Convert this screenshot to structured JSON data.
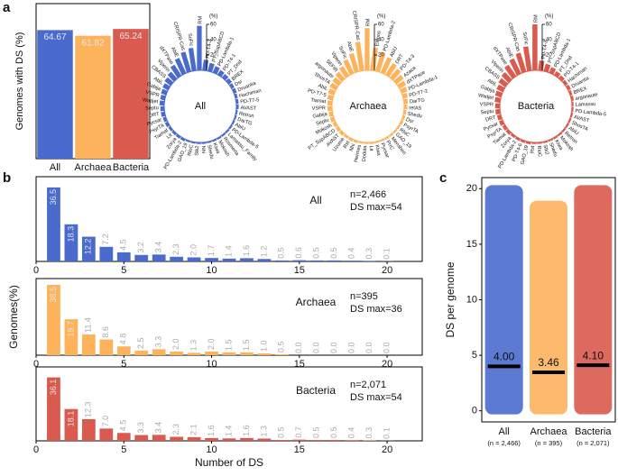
{
  "panel_labels": [
    "a",
    "b",
    "c"
  ],
  "chart_data": [
    {
      "type": "bar",
      "ylabel": "Genomes with DS (%)",
      "categories": [
        "All",
        "Archaea",
        "Bacteria"
      ],
      "values": [
        64.67,
        61.82,
        65.24
      ],
      "colors": [
        "#4a6bcd",
        "#fdb35c",
        "#d95a4e"
      ],
      "ylim": [
        0,
        78
      ]
    },
    {
      "type": "radial_bar",
      "title": "All",
      "color": "#4a6bcd",
      "rlim": [
        0,
        60
      ],
      "rticks": [
        20,
        40,
        60
      ],
      "r_unit": "(%)",
      "categories": [
        "RM",
        "SoFic",
        "CRISPR-Cas",
        "AbiE",
        "dXTPase",
        "Viperin",
        "CBASS",
        "AbiL",
        "Gabija",
        "VSPR",
        "Wadjet",
        "Septu",
        "DRT",
        "Pycsar",
        "PsyrTA",
        "Tiamat",
        "Lit",
        "Zorya",
        "PD-Lambda-2",
        "GAO_19",
        "RloC",
        "Stk2",
        "Nhi",
        "Shedu",
        "Kiwa",
        "Mokosh",
        "Rosmerta",
        "Lamassu_Family",
        "PD-Lambda-5",
        "AbiU",
        "DarTG",
        "Retron",
        "AVAST",
        "PD-T7-5",
        "Hachiman",
        "Druantia",
        "Dsr",
        "BREX",
        "PT_Dnd",
        "PD-T4-1",
        "PD-Lambda-1",
        "PT_SspABCD",
        "PD-T4-3"
      ],
      "values": [
        58,
        30,
        27,
        22,
        17,
        12,
        10,
        8,
        7,
        6,
        6,
        5,
        5,
        4,
        4,
        3,
        3,
        3,
        3,
        2,
        2,
        2,
        2,
        2,
        2,
        2,
        2,
        2,
        2,
        2,
        2,
        2,
        3,
        3,
        3,
        4,
        4,
        5,
        6,
        7,
        9,
        11,
        14
      ]
    },
    {
      "type": "radial_bar",
      "title": "Archaea",
      "color": "#fdb35c",
      "rlim": [
        0,
        60
      ],
      "rticks": [
        20,
        40,
        60
      ],
      "r_unit": "(%)",
      "categories": [
        "RM",
        "CRISPR-Cas",
        "AbiE",
        "SoFic",
        "Viperin",
        "SEFIR",
        "argonaute",
        "ShosTA",
        "AbiL",
        "PD-T7-5",
        "Tiamat",
        "VSPR",
        "Gabija",
        "Septu",
        "Mokosh",
        "PT_SspABCD",
        "AVAST",
        "Uzume",
        "Rst",
        "Nhi",
        "Hermes",
        "Dodola",
        "Lit",
        "Kiwa",
        "Pycsar",
        "PrrC",
        "Menshen",
        "GAO_19",
        "RloC",
        "PsyrTA",
        "Dsr",
        "Shedu",
        "retAS",
        "DarTG",
        "PD-T7-2",
        "PD-Lambda-1",
        "dXTPase",
        "Azaca",
        "PD-T4-3",
        "DRT",
        "AbiU",
        "PD-Lambda-2",
        "Elenos"
      ],
      "values": [
        55,
        38,
        25,
        20,
        15,
        12,
        10,
        9,
        8,
        7,
        6,
        6,
        5,
        5,
        4,
        4,
        4,
        3,
        3,
        3,
        2,
        2,
        2,
        2,
        2,
        2,
        2,
        2,
        2,
        3,
        3,
        3,
        4,
        5,
        6,
        8,
        10,
        12,
        15,
        18,
        22,
        26,
        30
      ]
    },
    {
      "type": "radial_bar",
      "title": "Bacteria",
      "color": "#d95a4e",
      "rlim": [
        0,
        60
      ],
      "rticks": [
        20,
        40,
        60
      ],
      "r_unit": "(%)",
      "categories": [
        "RM",
        "SoFic",
        "CRISPR-Cas",
        "AbiE",
        "dXTPase",
        "Viperin",
        "CBASS",
        "AbiL",
        "Gabija",
        "Wadjet",
        "VSPR",
        "Septu",
        "DRT",
        "Pycsar",
        "PsyrTA",
        "Tiamat",
        "Zorya",
        "PD-Lambda-2",
        "PD-T4-6",
        "GAO_19",
        "Rst",
        "RloC",
        "Stk2",
        "Shedu",
        "Kiwa",
        "Mokosh",
        "Retron",
        "AbiU",
        "ShosTA",
        "AVAST",
        "PD-Lambda-5",
        "Lamassu",
        "argonaute",
        "BREX",
        "Druantia",
        "Hachiman",
        "PD-T4-1",
        "PT_Dnd",
        "PD-Lambda-1",
        "PT_SspABCD",
        "PD-T4-3"
      ],
      "values": [
        60,
        32,
        26,
        22,
        18,
        13,
        11,
        9,
        8,
        7,
        6,
        6,
        5,
        5,
        4,
        4,
        3,
        3,
        3,
        3,
        2,
        2,
        2,
        2,
        2,
        2,
        2,
        2,
        2,
        2,
        2,
        2,
        3,
        3,
        4,
        4,
        5,
        6,
        8,
        10,
        13
      ]
    },
    {
      "type": "histogram_bar",
      "title": "All",
      "annotations": [
        "n=2,466",
        "DS max=54"
      ],
      "color": "#4a6bcd",
      "x": [
        1,
        2,
        3,
        4,
        5,
        6,
        7,
        8,
        9,
        10,
        11,
        12,
        13,
        14,
        15,
        16,
        17,
        18,
        19,
        20
      ],
      "values": [
        36.5,
        18.3,
        12.2,
        7.2,
        4.5,
        3.2,
        3.4,
        2.3,
        2.0,
        1.7,
        1.4,
        1.6,
        1.2,
        0.5,
        0.6,
        0.5,
        0.5,
        0.4,
        0.3,
        0.1
      ],
      "value_labels": [
        "36.5",
        "18.3",
        "12.2",
        "7.2",
        "4.5",
        "3.2",
        "3.4",
        "2.3",
        "2.0",
        "1.7",
        "1.4",
        "1.6",
        "1.2",
        "0.5",
        "0.6",
        "0.5",
        "0.5",
        "0.4",
        "0.3",
        "0.1"
      ],
      "xlim": [
        0,
        22
      ],
      "xticks": [
        0,
        5,
        10,
        15,
        20
      ],
      "ylim": [
        0,
        40
      ]
    },
    {
      "type": "histogram_bar",
      "title": "Archaea",
      "annotations": [
        "n=395",
        "DS max=36"
      ],
      "color": "#fdb35c",
      "ylabel": "Genomes(%)",
      "x": [
        1,
        2,
        3,
        4,
        5,
        6,
        7,
        8,
        9,
        10,
        11,
        12,
        13,
        14,
        15,
        16,
        17,
        18,
        19,
        20
      ],
      "values": [
        38.5,
        19.7,
        11.4,
        8.6,
        4.8,
        2.5,
        3.3,
        2.0,
        1.3,
        2.0,
        1.5,
        1.5,
        1.0,
        0.5,
        0,
        0,
        0,
        0,
        0,
        0
      ],
      "value_labels": [
        "38.5",
        "19.7",
        "11.4",
        "8.6",
        "4.8",
        "2.5",
        "3.3",
        "2.0",
        "1.3",
        "2.0",
        "1.5",
        "1.5",
        "1.0",
        "0.5",
        "0.0",
        "0.0",
        "0.0",
        "0.0",
        "0.0",
        "0.0"
      ],
      "xlim": [
        0,
        22
      ],
      "xticks": [
        0,
        5,
        10,
        15,
        20
      ],
      "ylim": [
        0,
        40
      ]
    },
    {
      "type": "histogram_bar",
      "title": "Bacteria",
      "annotations": [
        "n=2,071",
        "DS max=54"
      ],
      "color": "#d95a4e",
      "xlabel": "Number of DS",
      "x": [
        1,
        2,
        3,
        4,
        5,
        6,
        7,
        8,
        9,
        10,
        11,
        12,
        13,
        14,
        15,
        16,
        17,
        18,
        19,
        20
      ],
      "values": [
        36.1,
        18.1,
        12.3,
        7.0,
        4.5,
        3.3,
        3.4,
        2.3,
        2.1,
        1.6,
        1.4,
        1.6,
        1.3,
        0.5,
        0.7,
        0.5,
        0.5,
        0.4,
        0.3,
        0.1
      ],
      "value_labels": [
        "36.1",
        "18.1",
        "12.3",
        "7.0",
        "4.5",
        "3.3",
        "3.4",
        "2.3",
        "2.1",
        "1.6",
        "1.4",
        "1.6",
        "1.3",
        "0.5",
        "0.7",
        "0.5",
        "0.5",
        "0.4",
        "0.3",
        "0.1"
      ],
      "xlim": [
        0,
        22
      ],
      "xticks": [
        0,
        5,
        10,
        15,
        20
      ],
      "ylim": [
        0,
        40
      ]
    },
    {
      "type": "strip",
      "ylabel": "DS per genome",
      "categories": [
        "All",
        "Archaea",
        "Bacteria"
      ],
      "category_notes": [
        "(n = 2,466)",
        "(n = 395)",
        "(n = 2,071)"
      ],
      "colors": [
        "#4a6bcd",
        "#fdb35c",
        "#d95a4e"
      ],
      "values": [
        4,
        3.46,
        4.1
      ],
      "value_labels": [
        "4.00",
        "3.46",
        "4.10"
      ],
      "ranges": [
        [
          0,
          20
        ],
        [
          0,
          18.6
        ],
        [
          0,
          20
        ]
      ],
      "ylim": [
        -1,
        21
      ],
      "yticks": [
        0,
        5,
        10,
        15,
        20
      ]
    }
  ]
}
